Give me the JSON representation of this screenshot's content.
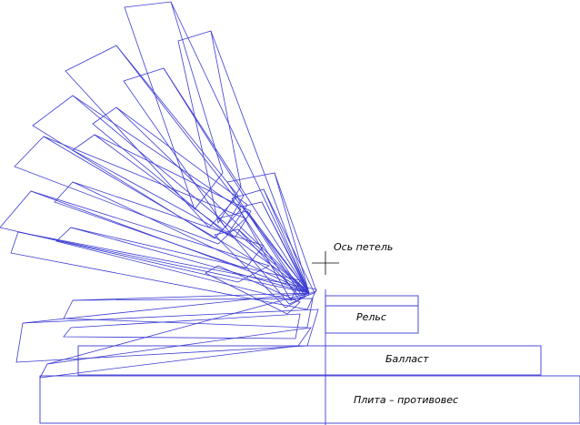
{
  "labels": {
    "loop_axis": "Ось петель",
    "rail": "Рельс",
    "ballast": "Балласт",
    "slab": "Плита – противовес"
  }
}
